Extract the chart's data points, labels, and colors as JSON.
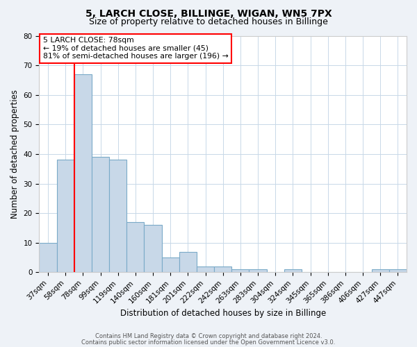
{
  "title1": "5, LARCH CLOSE, BILLINGE, WIGAN, WN5 7PX",
  "title2": "Size of property relative to detached houses in Billinge",
  "xlabel": "Distribution of detached houses by size in Billinge",
  "ylabel": "Number of detached properties",
  "categories": [
    "37sqm",
    "58sqm",
    "78sqm",
    "99sqm",
    "119sqm",
    "140sqm",
    "160sqm",
    "181sqm",
    "201sqm",
    "222sqm",
    "242sqm",
    "263sqm",
    "283sqm",
    "304sqm",
    "324sqm",
    "345sqm",
    "365sqm",
    "386sqm",
    "406sqm",
    "427sqm",
    "447sqm"
  ],
  "values": [
    10,
    38,
    67,
    39,
    38,
    17,
    16,
    5,
    7,
    2,
    2,
    1,
    1,
    0,
    1,
    0,
    0,
    0,
    0,
    1,
    1
  ],
  "bar_color": "#c8d8e8",
  "bar_edge_color": "#7aaac8",
  "vline_x": 1.5,
  "vline_color": "red",
  "annotation_title": "5 LARCH CLOSE: 78sqm",
  "annotation_line1": "← 19% of detached houses are smaller (45)",
  "annotation_line2": "81% of semi-detached houses are larger (196) →",
  "annotation_box_color": "white",
  "annotation_box_edge": "red",
  "ylim": [
    0,
    80
  ],
  "yticks": [
    0,
    10,
    20,
    30,
    40,
    50,
    60,
    70,
    80
  ],
  "footer1": "Contains HM Land Registry data © Crown copyright and database right 2024.",
  "footer2": "Contains public sector information licensed under the Open Government Licence v3.0.",
  "bg_color": "#eef2f7",
  "plot_bg_color": "white",
  "title_fontsize": 10,
  "subtitle_fontsize": 9,
  "tick_fontsize": 7.5,
  "label_fontsize": 8.5,
  "footer_fontsize": 6.0
}
